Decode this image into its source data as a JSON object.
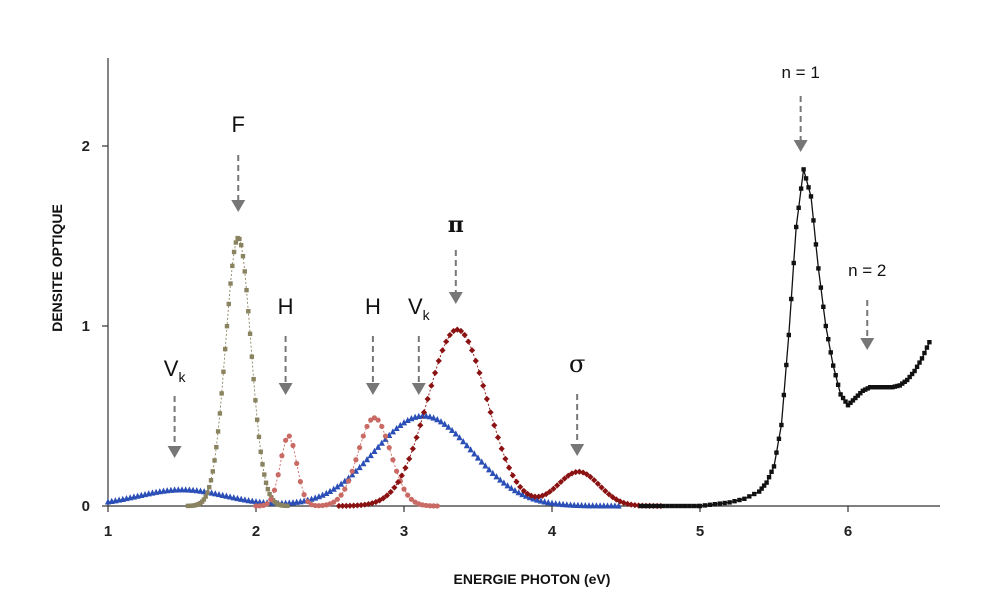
{
  "chart_data": {
    "type": "scatter",
    "xlabel": "ENERGIE PHOTON  (eV)",
    "ylabel": "DENSITE  OPTIQUE",
    "xlim": [
      1,
      6.6
    ],
    "ylim": [
      0,
      2.5
    ],
    "x_ticks": [
      "1",
      "2",
      "3",
      "4",
      "5",
      "6"
    ],
    "y_ticks": [
      "0",
      "1",
      "2"
    ],
    "grid": false,
    "legend": "none",
    "series": [
      {
        "color": "#2b4fb6",
        "marker": "triangle",
        "peaks": [
          {
            "x": 1.5,
            "y": 0.09,
            "width": 0.3
          },
          {
            "x": 3.13,
            "y": 0.5,
            "width": 0.33
          }
        ]
      },
      {
        "color": "#8a8360",
        "marker": "square",
        "peaks": [
          {
            "x": 1.88,
            "y": 1.49,
            "width": 0.085
          }
        ]
      },
      {
        "color": "#c96a64",
        "marker": "circle",
        "peaks": [
          {
            "x": 2.22,
            "y": 0.39,
            "width": 0.055
          },
          {
            "x": 2.8,
            "y": 0.49,
            "width": 0.11
          }
        ]
      },
      {
        "color": "#8b1212",
        "marker": "diamond",
        "peaks": [
          {
            "x": 3.36,
            "y": 0.98,
            "width": 0.2
          },
          {
            "x": 4.18,
            "y": 0.19,
            "width": 0.14
          }
        ]
      },
      {
        "color": "#111111",
        "marker": "square",
        "points": [
          [
            5.0,
            0.0
          ],
          [
            5.1,
            0.01
          ],
          [
            5.2,
            0.02
          ],
          [
            5.3,
            0.04
          ],
          [
            5.4,
            0.08
          ],
          [
            5.45,
            0.13
          ],
          [
            5.5,
            0.22
          ],
          [
            5.55,
            0.45
          ],
          [
            5.6,
            0.95
          ],
          [
            5.65,
            1.55
          ],
          [
            5.7,
            1.87
          ],
          [
            5.75,
            1.72
          ],
          [
            5.8,
            1.32
          ],
          [
            5.85,
            1.0
          ],
          [
            5.9,
            0.78
          ],
          [
            5.95,
            0.62
          ],
          [
            6.0,
            0.56
          ],
          [
            6.05,
            0.6
          ],
          [
            6.1,
            0.64
          ],
          [
            6.15,
            0.66
          ],
          [
            6.2,
            0.66
          ],
          [
            6.25,
            0.66
          ],
          [
            6.3,
            0.66
          ],
          [
            6.35,
            0.67
          ],
          [
            6.4,
            0.7
          ],
          [
            6.45,
            0.75
          ],
          [
            6.5,
            0.82
          ],
          [
            6.55,
            0.91
          ]
        ]
      }
    ],
    "annotations": [
      {
        "label": "V",
        "sub": "k",
        "x": 1.45
      },
      {
        "label": "F",
        "sub": "",
        "x": 1.88
      },
      {
        "label": "H",
        "sub": "",
        "x": 2.2
      },
      {
        "label": "H",
        "sub": "",
        "x": 2.79
      },
      {
        "label": "V",
        "sub": "k",
        "x": 3.1
      },
      {
        "label": "π",
        "sub": "",
        "x": 3.35
      },
      {
        "label": "σ",
        "sub": "",
        "x": 4.17
      },
      {
        "label": "n = 1",
        "sub": "",
        "x": 5.68
      },
      {
        "label": "n = 2",
        "sub": "",
        "x": 6.13
      }
    ]
  }
}
